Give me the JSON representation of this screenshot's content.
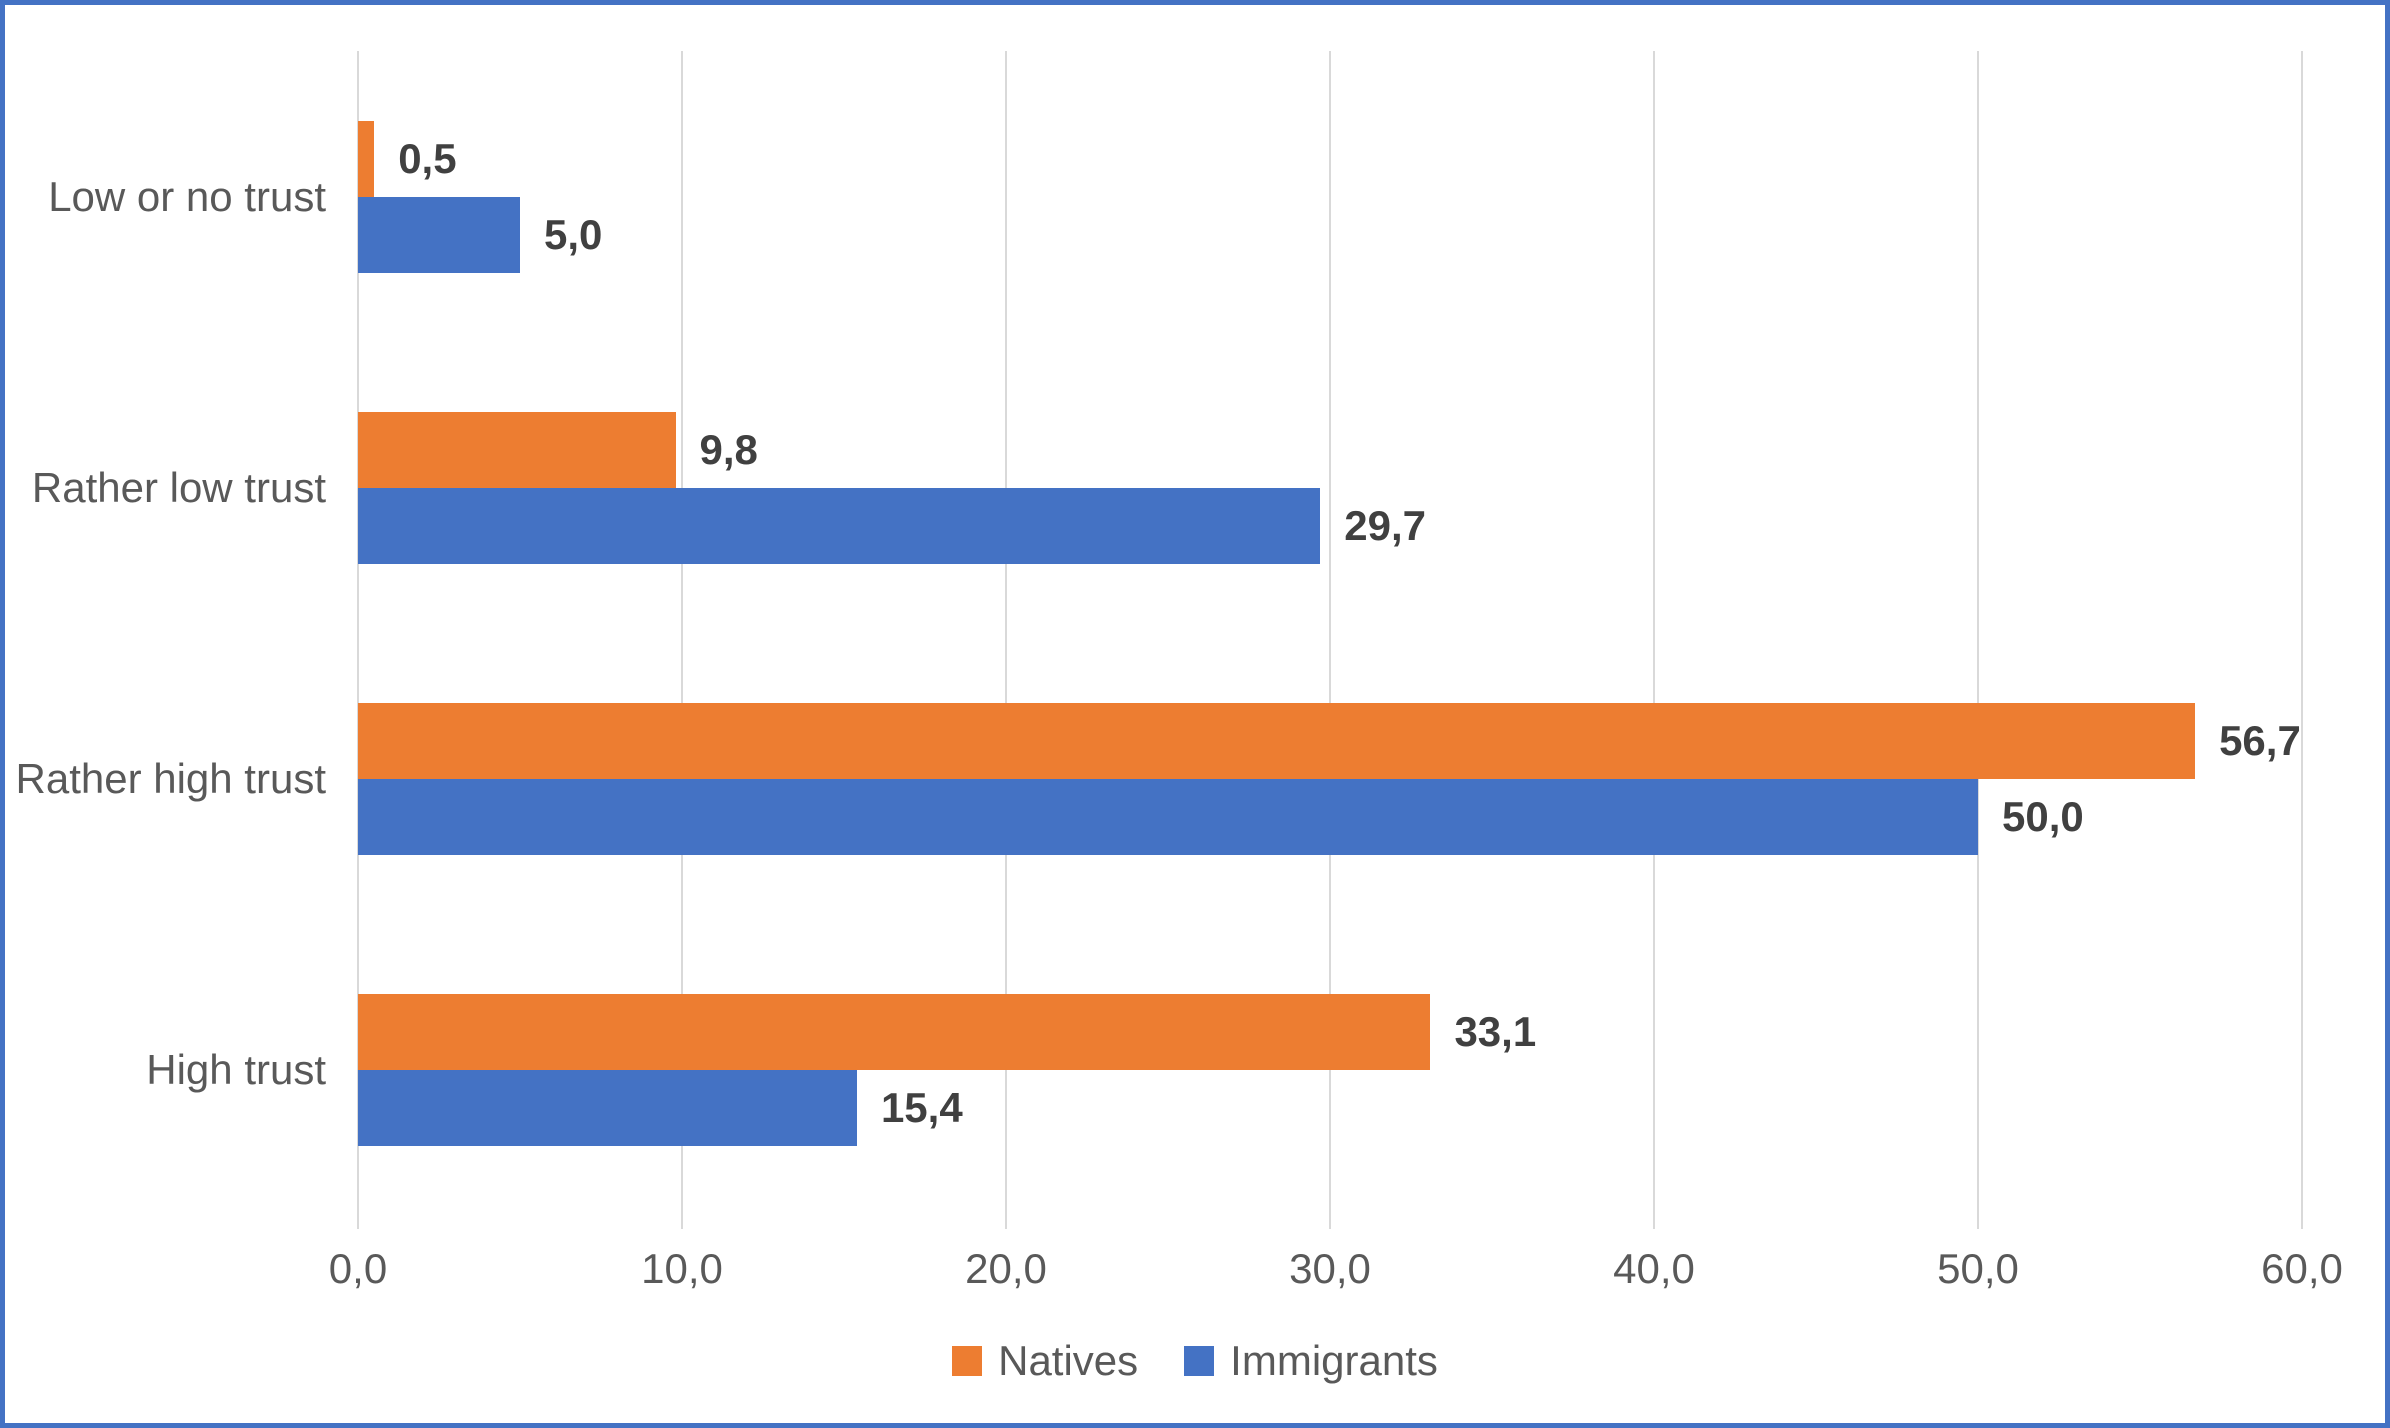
{
  "frame": {
    "border_color": "#4472C4",
    "background": "#FFFFFF"
  },
  "chart_data": {
    "type": "bar",
    "orientation": "horizontal",
    "title": "",
    "categories": [
      "Low or no trust",
      "Rather low trust",
      "Rather high trust",
      "High trust"
    ],
    "series": [
      {
        "name": "Natives",
        "color": "#ED7D31",
        "values": [
          0.5,
          9.8,
          56.7,
          33.1
        ],
        "value_labels": [
          "0,5",
          "9,8",
          "56,7",
          "33,1"
        ]
      },
      {
        "name": "Immigrants",
        "color": "#4472C4",
        "values": [
          5.0,
          29.7,
          50.0,
          15.4
        ],
        "value_labels": [
          "5,0",
          "29,7",
          "50,0",
          "15,4"
        ]
      }
    ],
    "x_axis": {
      "min": 0,
      "max": 60,
      "step": 10,
      "tick_labels": [
        "0,0",
        "10,0",
        "20,0",
        "30,0",
        "40,0",
        "50,0",
        "60,0"
      ]
    },
    "legend": {
      "position": "bottom",
      "entries": [
        {
          "label": "Natives",
          "color": "#ED7D31"
        },
        {
          "label": "Immigrants",
          "color": "#4472C4"
        }
      ]
    },
    "grid": true,
    "gridline_color": "#D9D9D9",
    "axis_text_color": "#595959",
    "data_label_color": "#404040"
  }
}
